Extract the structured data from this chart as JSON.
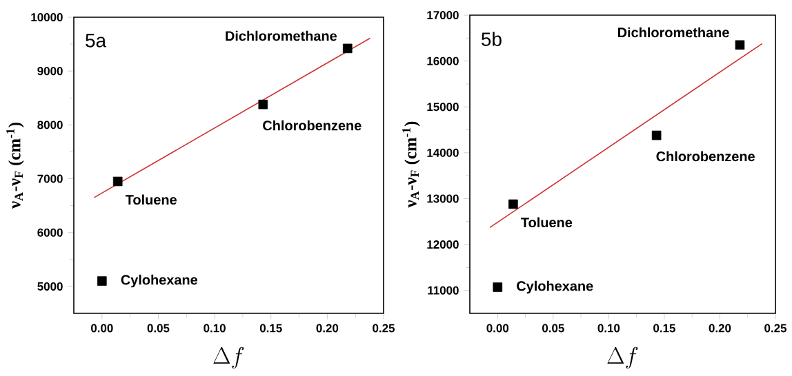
{
  "chart_data": [
    {
      "type": "scatter",
      "title": "5a",
      "xlabel": "\\Delta f",
      "ylabel": "ν$_{A}$-ν$_{F}$ (cm$^{-1}$)",
      "xlim": [
        -0.025,
        0.25
      ],
      "ylim": [
        4500,
        10000
      ],
      "xticks": [
        {
          "value": 0,
          "label": "0.00"
        },
        {
          "value": 0.05,
          "label": "0.05"
        },
        {
          "value": 0.1,
          "label": "0.10"
        },
        {
          "value": 0.15,
          "label": "0.15"
        },
        {
          "value": 0.2,
          "label": "0.20"
        },
        {
          "value": 0.25,
          "label": "0.25"
        }
      ],
      "yticks": [
        5000,
        6000,
        7000,
        8000,
        9000,
        10000
      ],
      "grid": false,
      "series": [
        {
          "color": "#000000",
          "marker": "square",
          "x": [
            0.0,
            0.014,
            0.143,
            0.218
          ],
          "values": [
            5100,
            6950,
            8380,
            9420
          ]
        },
        {
          "type": "line",
          "color": "#d03030",
          "marker": "none",
          "line_style": "solid",
          "x": [
            -0.007,
            0.238
          ],
          "values": [
            6650,
            9610
          ]
        }
      ],
      "annotations": [
        {
          "text": "Cylohexane",
          "x": 0.0,
          "y": 5100
        },
        {
          "text": "Toluene",
          "x": 0.014,
          "y": 6950
        },
        {
          "text": "Chlorobenzene",
          "x": 0.143,
          "y": 8380
        },
        {
          "text": "Dichloromethane",
          "x": 0.218,
          "y": 9420
        }
      ]
    },
    {
      "type": "scatter",
      "title": "5b",
      "xlabel": "\\Delta f",
      "ylabel": "ν$_{A}$-ν$_{F}$ (cm$^{-1}$)",
      "xlim": [
        -0.025,
        0.25
      ],
      "ylim": [
        10500,
        17000
      ],
      "xticks": [
        {
          "value": 0,
          "label": "0.00"
        },
        {
          "value": 0.05,
          "label": "0.05"
        },
        {
          "value": 0.1,
          "label": "0.10"
        },
        {
          "value": 0.15,
          "label": "0.15"
        },
        {
          "value": 0.2,
          "label": "0.20"
        },
        {
          "value": 0.25,
          "label": "0.25"
        }
      ],
      "yticks": [
        11000,
        12000,
        13000,
        14000,
        15000,
        16000,
        17000
      ],
      "grid": false,
      "series": [
        {
          "color": "#000000",
          "marker": "square",
          "x": [
            0.0,
            0.014,
            0.143,
            0.218
          ],
          "values": [
            11070,
            12880,
            14380,
            16350
          ]
        },
        {
          "type": "line",
          "color": "#d03030",
          "marker": "none",
          "line_style": "solid",
          "x": [
            -0.007,
            0.238
          ],
          "values": [
            12370,
            16380
          ]
        }
      ],
      "annotations": [
        {
          "text": "Cylohexane",
          "x": 0.0,
          "y": 11070
        },
        {
          "text": "Toluene",
          "x": 0.014,
          "y": 12880
        },
        {
          "text": "Chlorobenzene",
          "x": 0.143,
          "y": 14380
        },
        {
          "text": "Dichloromethane",
          "x": 0.218,
          "y": 16350
        }
      ]
    }
  ]
}
